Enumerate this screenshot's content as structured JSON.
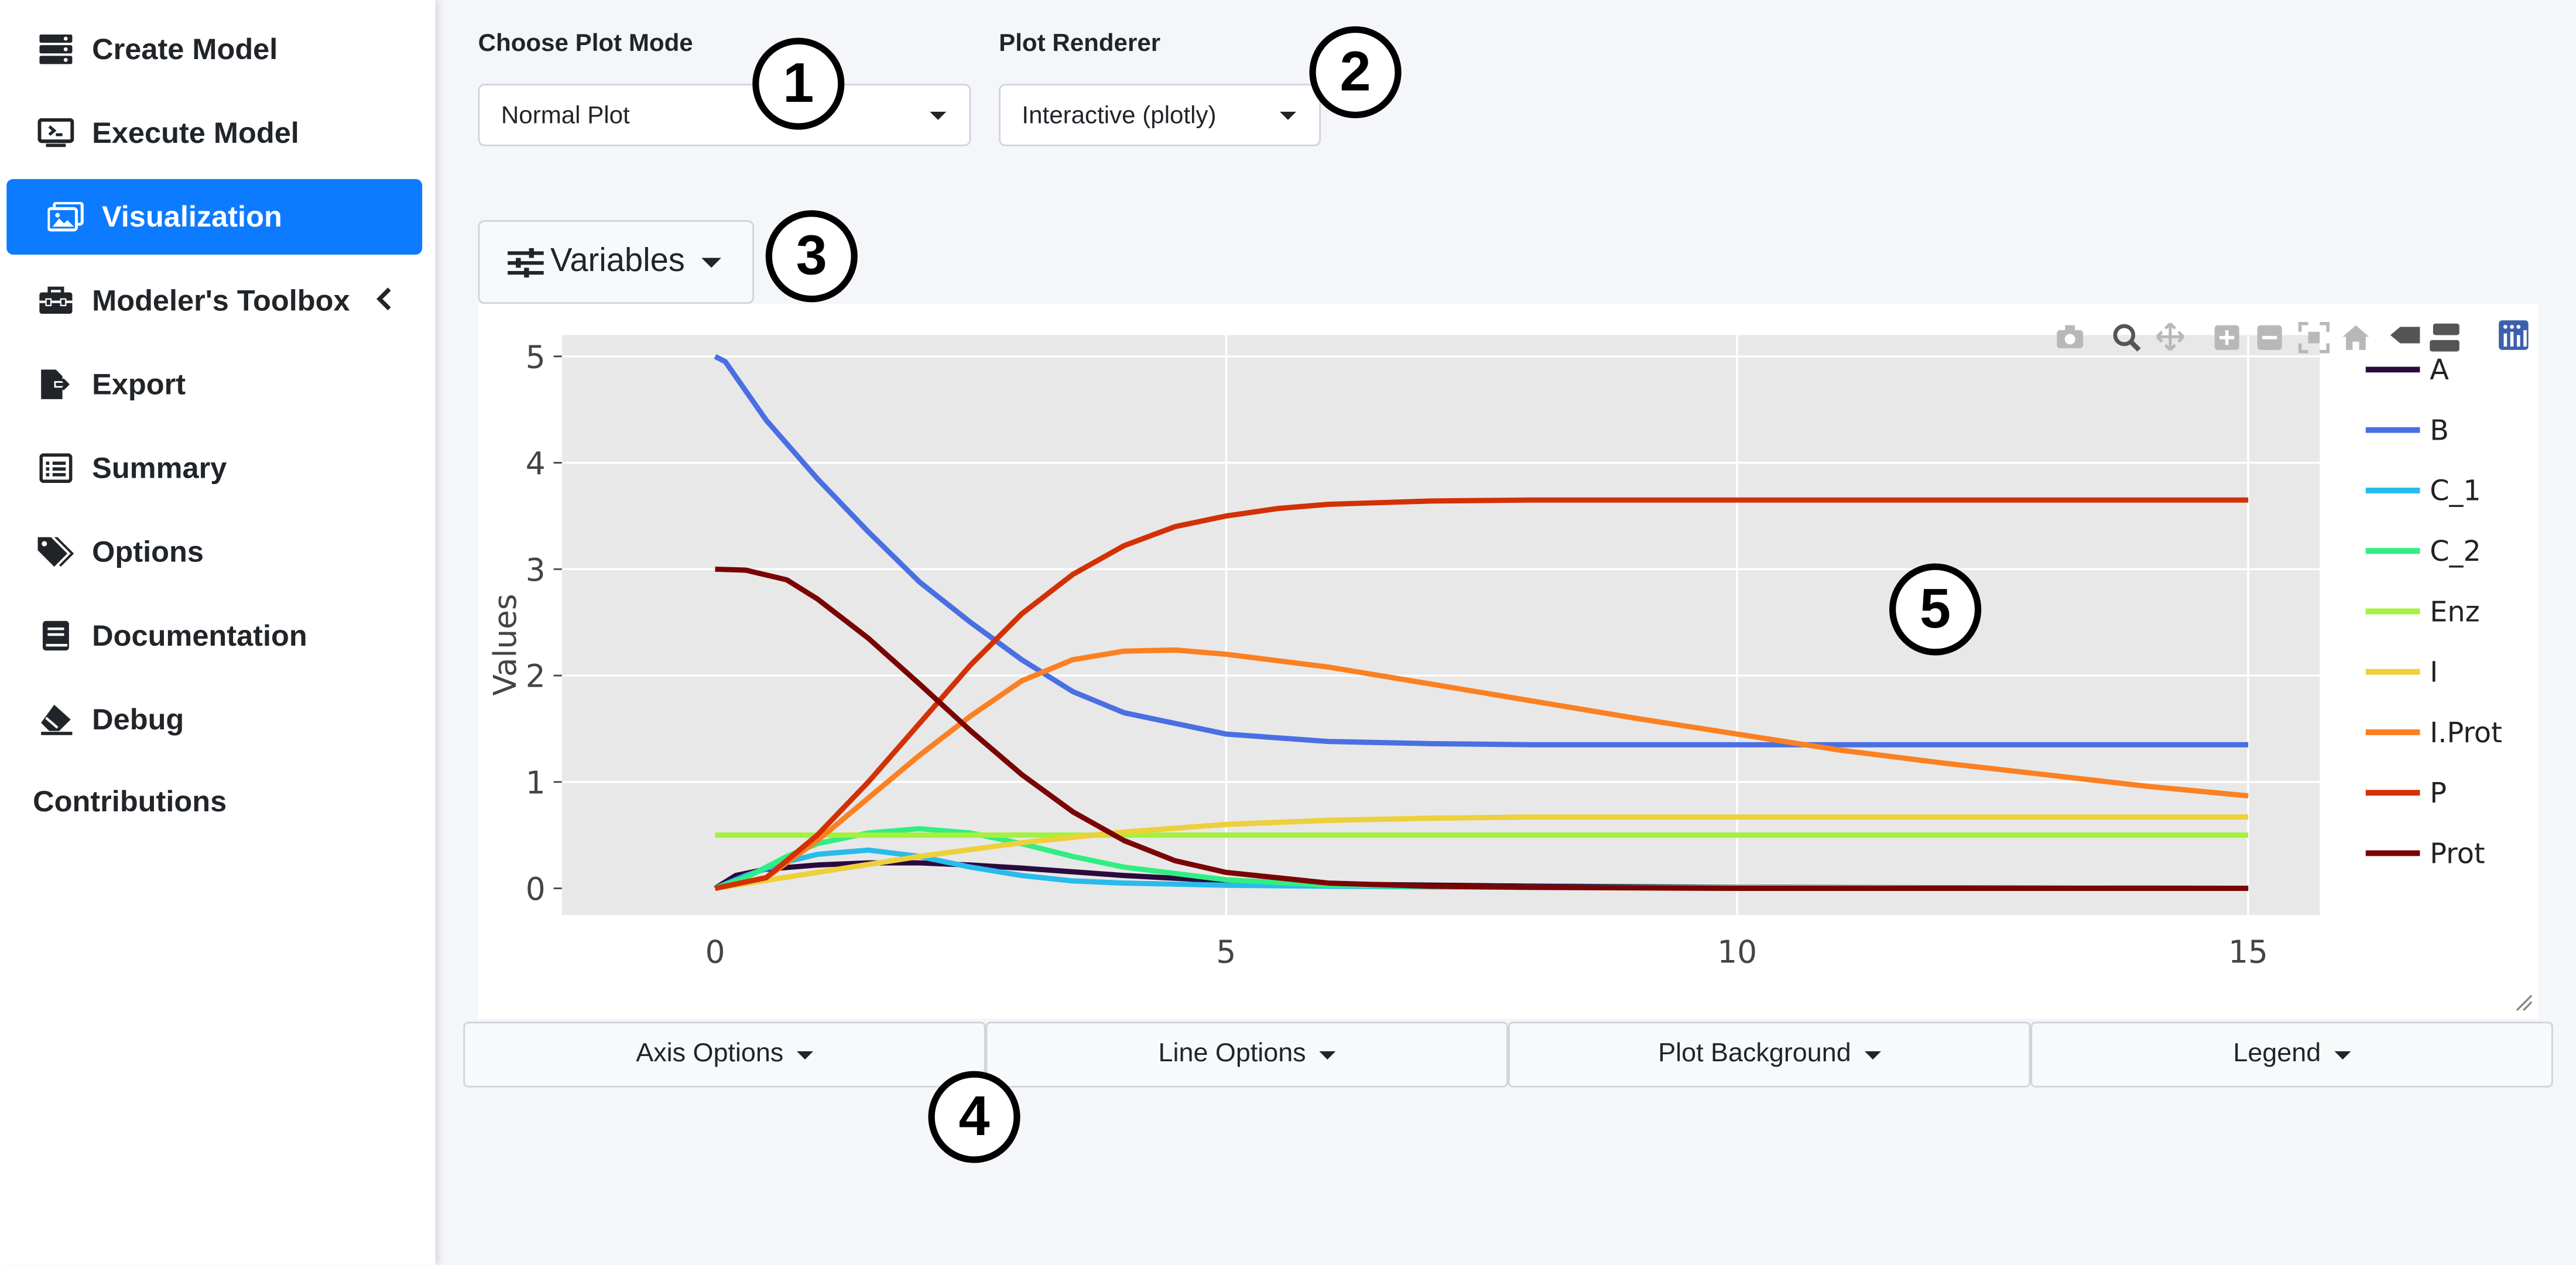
{
  "sidebar": {
    "items": [
      {
        "label": "Create Model",
        "icon": "server-icon"
      },
      {
        "label": "Execute Model",
        "icon": "monitor-icon"
      },
      {
        "label": "Visualization",
        "icon": "images-icon",
        "active": true
      },
      {
        "label": "Modeler's Toolbox",
        "icon": "toolbox-icon"
      },
      {
        "label": "Export",
        "icon": "file-export-icon"
      },
      {
        "label": "Summary",
        "icon": "list-icon"
      },
      {
        "label": "Options",
        "icon": "tags-icon"
      },
      {
        "label": "Documentation",
        "icon": "book-icon"
      },
      {
        "label": "Debug",
        "icon": "eraser-icon"
      }
    ],
    "contributions": "Contributions"
  },
  "controls": {
    "plot_mode_label": "Choose Plot Mode",
    "plot_mode_value": "Normal Plot",
    "renderer_label": "Plot Renderer",
    "renderer_value": "Interactive (plotly)",
    "variables_button": "Variables"
  },
  "annotations": [
    "1",
    "2",
    "3",
    "4",
    "5"
  ],
  "option_buttons": [
    "Axis Options",
    "Line Options",
    "Plot Background",
    "Legend"
  ],
  "colors": {
    "accent": "#0d7bff",
    "plot_bg": "#e8e8e8",
    "A": "#2b0a3d",
    "B": "#4a6fe3",
    "C_1": "#29bbec",
    "C_2": "#31ee82",
    "Enz": "#a3f23c",
    "I": "#edd03a",
    "I.Prot": "#fb8022",
    "P": "#d23105",
    "Prot": "#7a0403"
  },
  "chart_data": {
    "type": "line",
    "xlabel": "",
    "ylabel": "Values",
    "xlim": [
      -1.5,
      15.7
    ],
    "ylim": [
      -0.25,
      5.2
    ],
    "xticks": [
      "0",
      "5",
      "10",
      "15"
    ],
    "yticks": [
      "0",
      "1",
      "2",
      "3",
      "4",
      "5"
    ],
    "legend_position": "right",
    "grid": true,
    "series": [
      {
        "name": "A",
        "x": [
          0,
          0.2,
          0.5,
          1,
          1.5,
          2,
          2.5,
          3,
          4,
          5,
          6,
          8,
          10,
          15
        ],
        "y": [
          0,
          0.12,
          0.18,
          0.22,
          0.24,
          0.24,
          0.22,
          0.19,
          0.12,
          0.07,
          0.04,
          0.02,
          0.01,
          0.0
        ]
      },
      {
        "name": "B",
        "x": [
          0,
          0.1,
          0.5,
          1,
          1.5,
          2,
          2.5,
          3,
          3.5,
          4,
          5,
          6,
          7,
          8,
          10,
          12,
          15
        ],
        "y": [
          5.0,
          4.95,
          4.4,
          3.85,
          3.35,
          2.88,
          2.5,
          2.15,
          1.85,
          1.65,
          1.45,
          1.38,
          1.36,
          1.35,
          1.35,
          1.35,
          1.35
        ]
      },
      {
        "name": "C_1",
        "x": [
          0,
          0.3,
          0.7,
          1,
          1.5,
          2,
          2.5,
          3,
          3.5,
          4,
          5,
          6,
          8,
          15
        ],
        "y": [
          0,
          0.12,
          0.25,
          0.32,
          0.36,
          0.3,
          0.2,
          0.12,
          0.07,
          0.05,
          0.03,
          0.02,
          0.01,
          0.0
        ]
      },
      {
        "name": "C_2",
        "x": [
          0,
          0.3,
          0.7,
          1,
          1.5,
          2,
          2.5,
          3,
          3.5,
          4,
          5,
          6,
          8,
          15
        ],
        "y": [
          0,
          0.1,
          0.3,
          0.42,
          0.52,
          0.56,
          0.52,
          0.42,
          0.3,
          0.2,
          0.08,
          0.03,
          0.01,
          0.0
        ]
      },
      {
        "name": "Enz",
        "x": [
          0,
          15
        ],
        "y": [
          0.5,
          0.5
        ]
      },
      {
        "name": "I",
        "x": [
          0,
          1,
          2,
          3,
          4,
          5,
          6,
          7,
          8,
          10,
          15
        ],
        "y": [
          0,
          0.15,
          0.3,
          0.43,
          0.53,
          0.6,
          0.64,
          0.66,
          0.67,
          0.67,
          0.67
        ]
      },
      {
        "name": "I.Prot",
        "x": [
          0,
          0.5,
          1,
          1.5,
          2,
          2.5,
          3,
          3.5,
          4,
          4.5,
          5,
          6,
          7,
          8,
          9,
          10,
          11,
          12,
          13,
          14,
          15
        ],
        "y": [
          0,
          0.1,
          0.45,
          0.85,
          1.25,
          1.62,
          1.95,
          2.15,
          2.23,
          2.24,
          2.2,
          2.08,
          1.92,
          1.76,
          1.6,
          1.45,
          1.3,
          1.18,
          1.07,
          0.96,
          0.87
        ]
      },
      {
        "name": "P",
        "x": [
          0,
          0.5,
          1,
          1.5,
          2,
          2.5,
          3,
          3.5,
          4,
          4.5,
          5,
          5.5,
          6,
          7,
          8,
          10,
          12,
          15
        ],
        "y": [
          0,
          0.1,
          0.5,
          1.0,
          1.55,
          2.1,
          2.58,
          2.95,
          3.22,
          3.4,
          3.5,
          3.57,
          3.61,
          3.64,
          3.65,
          3.65,
          3.65,
          3.65
        ]
      },
      {
        "name": "Prot",
        "x": [
          0,
          0.3,
          0.7,
          1,
          1.5,
          2,
          2.5,
          3,
          3.5,
          4,
          4.5,
          5,
          6,
          7,
          8,
          10,
          15
        ],
        "y": [
          3.0,
          2.99,
          2.9,
          2.72,
          2.35,
          1.92,
          1.48,
          1.07,
          0.72,
          0.45,
          0.26,
          0.15,
          0.05,
          0.02,
          0.01,
          0.0,
          0.0
        ]
      }
    ]
  }
}
